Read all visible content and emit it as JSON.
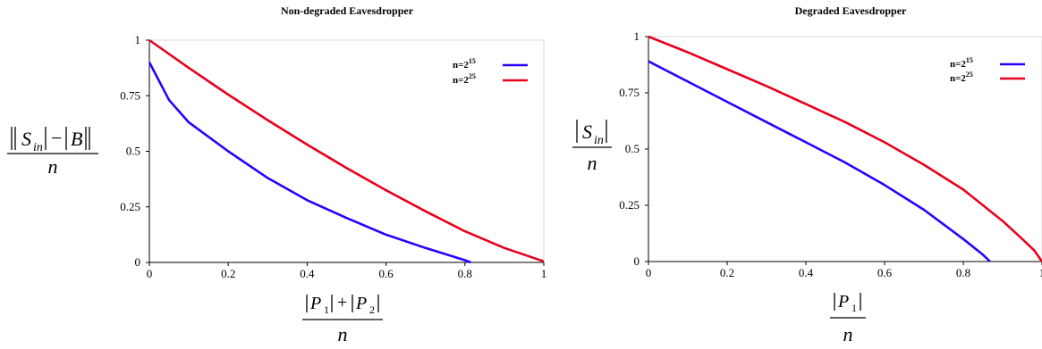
{
  "chart_data": [
    {
      "type": "line",
      "title": "Non-degraded Eavesdropper",
      "xlim": [
        0,
        1
      ],
      "ylim": [
        0,
        1
      ],
      "x_ticks": [
        "0",
        "0.2",
        "0.4",
        "0.6",
        "0.8",
        "1"
      ],
      "y_ticks": [
        "0",
        "0.25",
        "0.5",
        "0.75",
        "1"
      ],
      "legend_position": "top-right",
      "grid": false,
      "series": [
        {
          "name": "n=2^15",
          "name_base": "n=2",
          "name_exp": "15",
          "color": "#2a00ff",
          "x": [
            0,
            0.05,
            0.1,
            0.2,
            0.3,
            0.4,
            0.5,
            0.6,
            0.7,
            0.8,
            0.815
          ],
          "y": [
            0.9,
            0.73,
            0.63,
            0.5,
            0.38,
            0.28,
            0.2,
            0.125,
            0.065,
            0.01,
            0
          ]
        },
        {
          "name": "n=2^25",
          "name_base": "n=2",
          "name_exp": "25",
          "color": "#e8001c",
          "x": [
            0,
            0.1,
            0.2,
            0.3,
            0.4,
            0.5,
            0.6,
            0.7,
            0.8,
            0.9,
            1.0
          ],
          "y": [
            1.0,
            0.875,
            0.755,
            0.64,
            0.53,
            0.425,
            0.325,
            0.23,
            0.14,
            0.065,
            0.005
          ]
        }
      ]
    },
    {
      "type": "line",
      "title": "Degraded Eavesdropper",
      "xlim": [
        0,
        1
      ],
      "ylim": [
        0,
        1
      ],
      "x_ticks": [
        "0",
        "0.2",
        "0.4",
        "0.6",
        "0.8",
        "1"
      ],
      "y_ticks": [
        "0",
        "0.25",
        "0.5",
        "0.75",
        "1"
      ],
      "legend_position": "top-right",
      "grid": false,
      "series": [
        {
          "name": "n=2^15",
          "name_base": "n=2",
          "name_exp": "15",
          "color": "#2a00ff",
          "x": [
            0,
            0.1,
            0.2,
            0.3,
            0.4,
            0.5,
            0.6,
            0.7,
            0.8,
            0.85,
            0.868
          ],
          "y": [
            0.89,
            0.8,
            0.71,
            0.62,
            0.53,
            0.44,
            0.34,
            0.23,
            0.1,
            0.03,
            0
          ]
        },
        {
          "name": "n=2^25",
          "name_base": "n=2",
          "name_exp": "25",
          "color": "#e8001c",
          "x": [
            0,
            0.1,
            0.2,
            0.3,
            0.4,
            0.5,
            0.6,
            0.7,
            0.8,
            0.9,
            0.95,
            0.98,
            1.0
          ],
          "y": [
            1.0,
            0.93,
            0.855,
            0.78,
            0.7,
            0.62,
            0.53,
            0.43,
            0.32,
            0.18,
            0.1,
            0.05,
            0.0
          ]
        }
      ]
    }
  ]
}
